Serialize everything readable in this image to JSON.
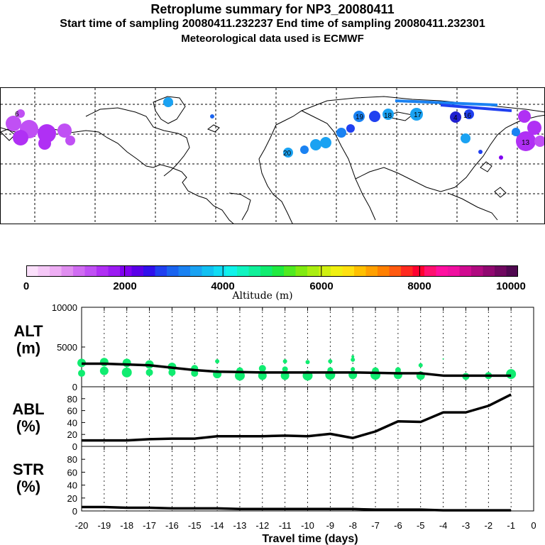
{
  "header": {
    "title": "Retroplume summary for NP3_20080411",
    "sampling": "Start time of sampling 20080411.232237     End time of sampling 20080411.232301",
    "met": "Meteorological data used is ECMWF"
  },
  "map": {
    "markers": [
      {
        "label": "6",
        "color": "#b034f0"
      },
      {
        "label": "17",
        "color": "#13b4ee"
      },
      {
        "label": "18",
        "color": "#3a9aef"
      },
      {
        "label": "16",
        "color": "#1c3ae8"
      },
      {
        "label": "19",
        "color": "#2a8ff0"
      },
      {
        "label": "20",
        "color": "#3d9ff0"
      },
      {
        "label": "13",
        "color": "#b030f0"
      },
      {
        "label": "4",
        "color": "#1c1ac8"
      }
    ]
  },
  "colorbar": {
    "title": "Altitude (m)",
    "labels": [
      "0",
      "2000",
      "4000",
      "6000",
      "8000",
      "10000"
    ],
    "colors": [
      "#fbe0fb",
      "#f5c8f7",
      "#eeaef4",
      "#e08ef0",
      "#d06cf2",
      "#c050f4",
      "#b030f4",
      "#9c1cf2",
      "#8000f0",
      "#5a00e8",
      "#3010ec",
      "#2040f0",
      "#1a64f0",
      "#1a82f2",
      "#1aa2f2",
      "#12c0f2",
      "#10dcf4",
      "#10f2ea",
      "#10f4c0",
      "#10f09a",
      "#10ec70",
      "#20ea40",
      "#50ea20",
      "#80ea10",
      "#aaee10",
      "#d0f010",
      "#f0f010",
      "#ffe010",
      "#ffc000",
      "#ffa000",
      "#ff8000",
      "#ff5a10",
      "#ff2a20",
      "#ff0030",
      "#ff1070",
      "#ff10a0",
      "#f010a0",
      "#d00a90",
      "#b00a80",
      "#900870",
      "#700860",
      "#500850"
    ]
  },
  "axes": {
    "xlabel": "Travel time (days)",
    "xticks": [
      "-20",
      "-19",
      "-18",
      "-17",
      "-16",
      "-15",
      "-14",
      "-13",
      "-12",
      "-11",
      "-10",
      "-9",
      "-8",
      "-7",
      "-6",
      "-5",
      "-4",
      "-3",
      "-2",
      "-1",
      "0"
    ]
  },
  "chart_data": [
    {
      "type": "line",
      "name": "ALT",
      "title": "ALT\n(m)",
      "label_line1": "ALT",
      "label_line2": "(m)",
      "yticks": [
        "10000",
        "5000",
        "0"
      ],
      "ylim": [
        0,
        10000
      ],
      "x": [
        -20,
        -19,
        -18,
        -17,
        -16,
        -15,
        -14,
        -13,
        -12,
        -11,
        -10,
        -9,
        -8,
        -7,
        -6,
        -5,
        -4,
        -3,
        -2,
        -1
      ],
      "values": [
        2900,
        2900,
        2800,
        2700,
        2400,
        2100,
        1900,
        1850,
        1800,
        1800,
        1800,
        1800,
        1800,
        1750,
        1700,
        1700,
        1400,
        1400,
        1400,
        1400
      ],
      "scatter": {
        "color": "#10ec70",
        "x": [
          -20,
          -20,
          -19,
          -19,
          -18,
          -18,
          -17,
          -17,
          -16,
          -16,
          -15,
          -15,
          -14,
          -14,
          -13,
          -13,
          -12,
          -12,
          -11,
          -11,
          -11,
          -10,
          -10,
          -9,
          -9,
          -9,
          -8,
          -8,
          -8,
          -8,
          -7,
          -7,
          -6,
          -6,
          -5,
          -5,
          -4,
          -3,
          -2,
          -1
        ],
        "y": [
          3000,
          1700,
          3100,
          2000,
          3000,
          1800,
          2800,
          1800,
          2500,
          1800,
          2300,
          1700,
          3200,
          1600,
          2000,
          1400,
          2300,
          1400,
          3200,
          1400,
          2200,
          1400,
          3100,
          1500,
          3200,
          2100,
          3400,
          3800,
          1500,
          2200,
          2000,
          1500,
          2100,
          1500,
          2700,
          1400,
          3500,
          1300,
          1400,
          1600
        ],
        "r": [
          6,
          5,
          6,
          6,
          6,
          7,
          6,
          5,
          6,
          5,
          5,
          5,
          3,
          6,
          5,
          7,
          5,
          6,
          3,
          6,
          4,
          7,
          3,
          7,
          3,
          4,
          3,
          2,
          6,
          3,
          5,
          7,
          4,
          6,
          3,
          6,
          1,
          5,
          5,
          7
        ]
      }
    },
    {
      "type": "line",
      "name": "ABL",
      "label_line1": "ABL",
      "label_line2": "(%)",
      "yticks": [
        "80",
        "60",
        "40",
        "20",
        "0"
      ],
      "ylim": [
        0,
        100
      ],
      "x": [
        -20,
        -19,
        -18,
        -17,
        -16,
        -15,
        -14,
        -13,
        -12,
        -11,
        -10,
        -9,
        -8,
        -7,
        -6,
        -5,
        -4,
        -3,
        -2,
        -1
      ],
      "values": [
        10,
        10,
        10,
        12,
        13,
        13,
        17,
        17,
        17,
        18,
        17,
        21,
        14,
        25,
        42,
        41,
        57,
        57,
        68,
        87
      ]
    },
    {
      "type": "line",
      "name": "STR",
      "label_line1": "STR",
      "label_line2": "(%)",
      "yticks": [
        "80",
        "60",
        "40",
        "20",
        "0"
      ],
      "ylim": [
        0,
        100
      ],
      "x": [
        -20,
        -19,
        -18,
        -17,
        -16,
        -15,
        -14,
        -13,
        -12,
        -11,
        -10,
        -9,
        -8,
        -7,
        -6,
        -5,
        -4,
        -3,
        -2,
        -1
      ],
      "values": [
        6,
        6,
        5,
        5,
        4,
        4,
        4,
        3,
        3,
        3,
        3,
        3,
        3,
        2,
        2,
        2,
        1,
        1,
        1,
        1
      ]
    }
  ]
}
